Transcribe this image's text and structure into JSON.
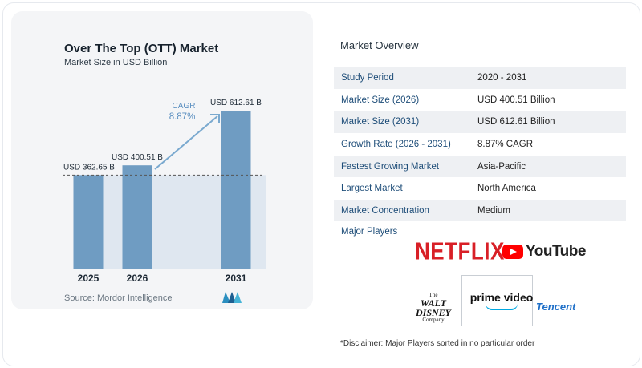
{
  "chart_data": {
    "type": "bar",
    "title": "Over The Top (OTT) Market",
    "subtitle": "Market Size in USD Billion",
    "categories": [
      "2025",
      "2026",
      "2031"
    ],
    "values": [
      362.65,
      400.51,
      612.61
    ],
    "value_labels": [
      "USD 362.65 B",
      "USD 400.51 B",
      "USD 612.61 B"
    ],
    "cagr_label": "CAGR",
    "cagr_value": "8.87%",
    "colors": {
      "bar": "#6f9cc2",
      "band": "#dfe7f0",
      "arrow": "#7aa9cf",
      "cagr_text": "#5b8fc0"
    },
    "grid": false,
    "source": "Source:  Mordor Intelligence"
  },
  "overview": {
    "title": "Market Overview",
    "rows": [
      {
        "label": "Study Period",
        "value": "2020 - 2031"
      },
      {
        "label": "Market Size (2026)",
        "value": "USD 400.51 Billion"
      },
      {
        "label": "Market Size (2031)",
        "value": "USD 612.61 Billion"
      },
      {
        "label": "Growth Rate (2026 - 2031)",
        "value": "8.87% CAGR"
      },
      {
        "label": "Fastest Growing Market",
        "value": "Asia-Pacific"
      },
      {
        "label": "Largest Market",
        "value": "North America"
      },
      {
        "label": "Market Concentration",
        "value": "Medium"
      }
    ],
    "players_label": "Major Players",
    "players": {
      "netflix": "NETFLIX",
      "youtube": "YouTube",
      "disney_top": "The",
      "disney_mid": "WALT DISNEY",
      "disney_bottom": "Company",
      "prime": "prime video",
      "tencent": "Tencent"
    },
    "disclaimer": "*Disclaimer: Major Players sorted in no particular order"
  }
}
